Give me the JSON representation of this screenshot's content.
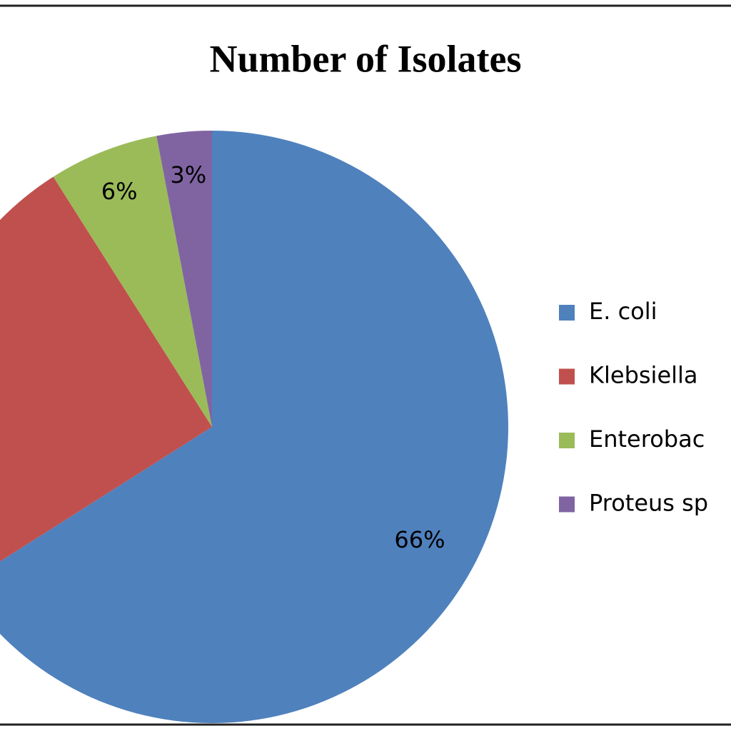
{
  "chart_data": {
    "type": "pie",
    "title": "Number of Isolates",
    "categories": [
      "E. coli",
      "Klebsiella",
      "Enterobac",
      "Proteus sp"
    ],
    "values": [
      66,
      25,
      6,
      3
    ],
    "value_labels": [
      "66%",
      null,
      "6%",
      "3%"
    ],
    "colors": [
      "#4f81bd",
      "#c0504d",
      "#9bbb59",
      "#8064a2"
    ],
    "legend": "right"
  }
}
